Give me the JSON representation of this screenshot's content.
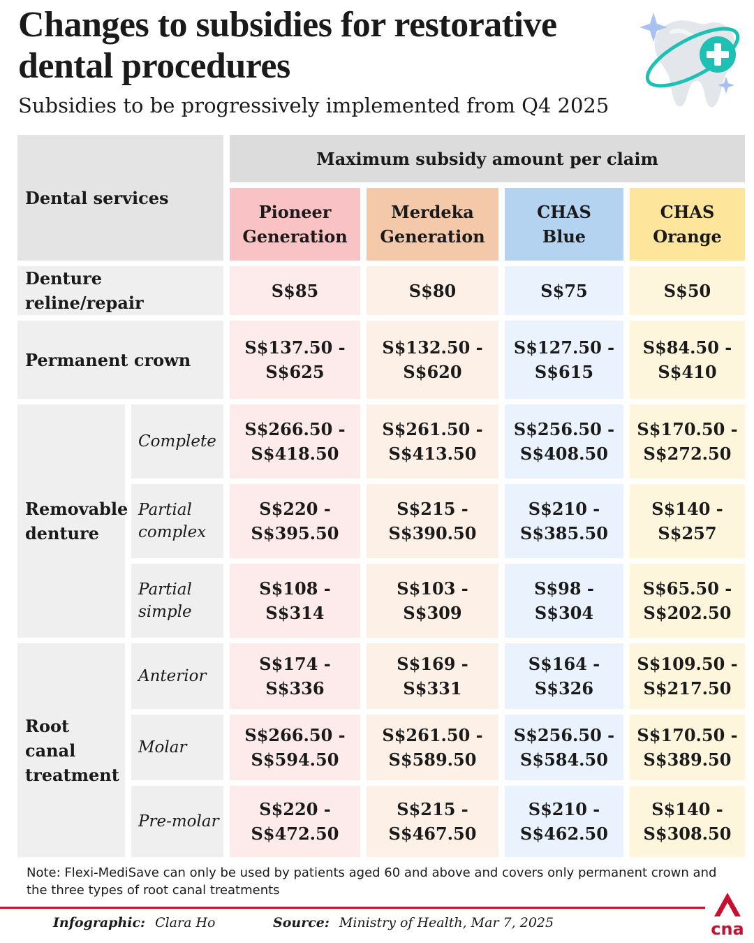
{
  "header": {
    "title": "Changes to subsidies for restorative dental procedures",
    "subtitle": "Subsidies to be progressively implemented from Q4 2025"
  },
  "table": {
    "service_header": "Dental services",
    "max_header": "Maximum subsidy amount per claim",
    "columns": [
      "Pioneer\nGeneration",
      "Merdeka\nGeneration",
      "CHAS\nBlue",
      "CHAS\nOrange"
    ],
    "groups": {
      "removable_denture": "Removable denture",
      "root_canal": "Root canal treatment"
    },
    "rows": [
      {
        "service": "Denture reline/repair",
        "values": [
          "S$85",
          "S$80",
          "S$75",
          "S$50"
        ]
      },
      {
        "service": "Permanent crown",
        "values": [
          "S$137.50 -\nS$625",
          "S$132.50 -\nS$620",
          "S$127.50 -\nS$615",
          "S$84.50 -\nS$410"
        ]
      },
      {
        "service": "Complete",
        "values": [
          "S$266.50 -\nS$418.50",
          "S$261.50 -\nS$413.50",
          "S$256.50 -\nS$408.50",
          "S$170.50 -\nS$272.50"
        ]
      },
      {
        "service": "Partial complex",
        "values": [
          "S$220 -\nS$395.50",
          "S$215 -\nS$390.50",
          "S$210 -\nS$385.50",
          "S$140 -\nS$257"
        ]
      },
      {
        "service": "Partial simple",
        "values": [
          "S$108 -\nS$314",
          "S$103 -\nS$309",
          "S$98 -\nS$304",
          "S$65.50 -\nS$202.50"
        ]
      },
      {
        "service": "Anterior",
        "values": [
          "S$174 -\nS$336",
          "S$169 -\nS$331",
          "S$164 -\nS$326",
          "S$109.50 -\nS$217.50"
        ]
      },
      {
        "service": "Molar",
        "values": [
          "S$266.50 -\nS$594.50",
          "S$261.50 -\nS$589.50",
          "S$256.50 -\nS$584.50",
          "S$170.50 -\nS$389.50"
        ]
      },
      {
        "service": "Pre-molar",
        "values": [
          "S$220 -\nS$472.50",
          "S$215 -\nS$467.50",
          "S$210 -\nS$462.50",
          "S$140 -\nS$308.50"
        ]
      }
    ]
  },
  "note": "Note: Flexi-MediSave can only be used by patients aged 60 and above and covers only permanent crown and the three types of root canal treatments",
  "footer": {
    "infographic_label": "Infographic:",
    "infographic_value": "Clara Ho",
    "source_label": "Source:",
    "source_value": "Ministry of Health, Mar 7, 2025",
    "brand": "cna"
  },
  "colors": {
    "pioneer": "#f9c2c4",
    "merdeka": "#f4c9a9",
    "chas_blue": "#b4d3f1",
    "chas_orange": "#fde59b",
    "accent_red": "#c8102e",
    "teal": "#1fc0b4"
  },
  "icons": [
    "tooth-icon",
    "plus-icon",
    "sparkle-icon",
    "cna-logo-icon"
  ]
}
